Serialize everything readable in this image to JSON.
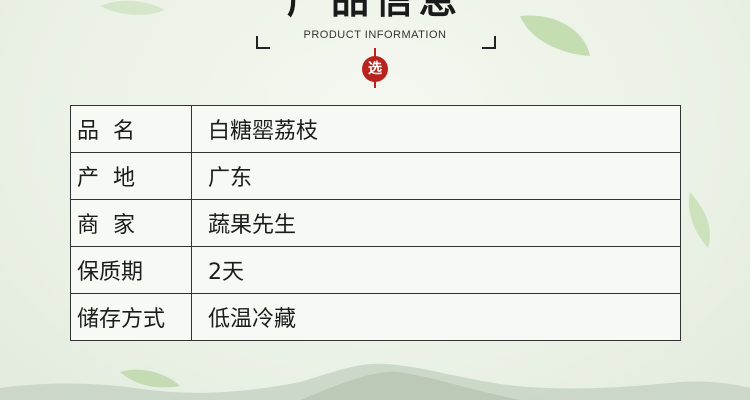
{
  "header": {
    "title_cn": "产品信息",
    "title_en": "PRODUCT INFORMATION",
    "seal_char": "选"
  },
  "info_table": {
    "rows": [
      {
        "label": "品名",
        "value": "白糖罂荔枝"
      },
      {
        "label": "产地",
        "value": "广东"
      },
      {
        "label": "商家",
        "value": "蔬果先生"
      },
      {
        "label": "保质期",
        "value": "2天"
      },
      {
        "label": "储存方式",
        "value": "低温冷藏"
      }
    ]
  },
  "colors": {
    "background": "#edf3e8",
    "border": "#333333",
    "seal": "#b8241d",
    "leaf": "#b9d7a8",
    "mountain": "#c9d5c4"
  }
}
